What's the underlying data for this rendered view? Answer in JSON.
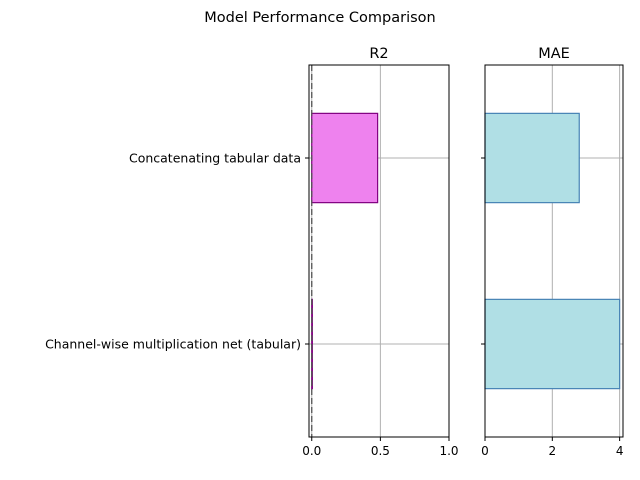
{
  "chart_data": {
    "type": "bar",
    "orientation": "horizontal",
    "title": "Model Performance Comparison",
    "categories": [
      "Concatenating tabular data",
      "Channel-wise multiplication net (tabular)"
    ],
    "grid": true,
    "panels": [
      {
        "title": "R2",
        "xlim": [
          -0.02,
          1.0
        ],
        "xticks": [
          0.0,
          0.5,
          1.0
        ],
        "xtick_labels": [
          "0.0",
          "0.5",
          "1.0"
        ],
        "values": [
          0.48,
          0.0
        ],
        "bar_color": "#ee82ee",
        "edge_color": "#800080",
        "reference_line": 0,
        "show_category_labels": true
      },
      {
        "title": "MAE",
        "xlim": [
          0,
          4.1
        ],
        "xticks": [
          0,
          2,
          4
        ],
        "xtick_labels": [
          "0",
          "2",
          "4"
        ],
        "values": [
          2.8,
          4.0
        ],
        "bar_color": "#b0dfe5",
        "edge_color": "#4682b4",
        "show_category_labels": false
      }
    ]
  }
}
